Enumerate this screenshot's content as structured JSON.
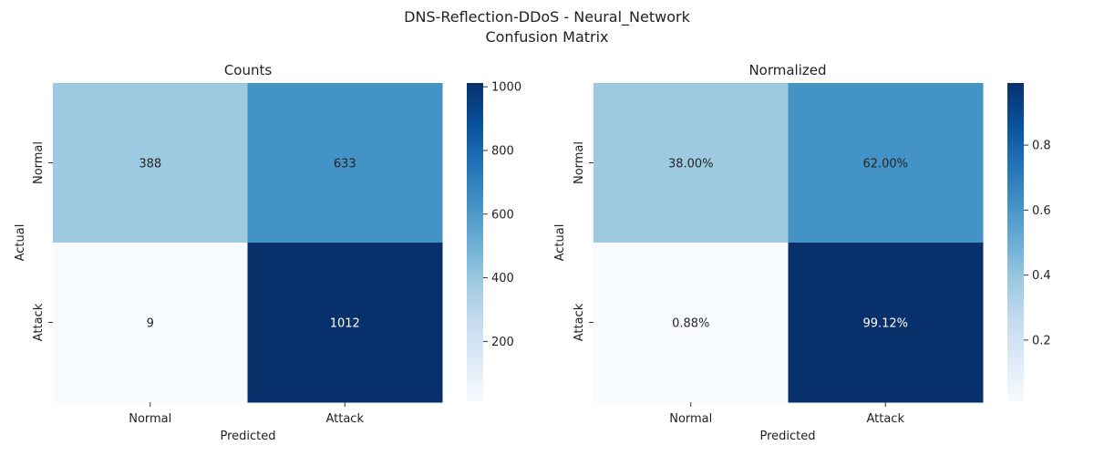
{
  "figure": {
    "title_line1": "DNS-Reflection-DDoS - Neural_Network",
    "title_line2": "Confusion Matrix"
  },
  "chart_data": [
    {
      "type": "heatmap",
      "title": "Counts",
      "xlabel": "Predicted",
      "ylabel": "Actual",
      "x_categories": [
        "Normal",
        "Attack"
      ],
      "y_categories": [
        "Normal",
        "Attack"
      ],
      "values": [
        [
          388,
          633
        ],
        [
          9,
          1012
        ]
      ],
      "cell_labels": [
        [
          "388",
          "633"
        ],
        [
          "9",
          "1012"
        ]
      ],
      "colormap": "Blues",
      "color_range": [
        9,
        1012
      ],
      "colorbar_ticks": [
        200,
        400,
        600,
        800,
        1000
      ],
      "colorbar_tick_labels": [
        "200",
        "400",
        "600",
        "800",
        "1000"
      ]
    },
    {
      "type": "heatmap",
      "title": "Normalized",
      "xlabel": "Predicted",
      "ylabel": "Actual",
      "x_categories": [
        "Normal",
        "Attack"
      ],
      "y_categories": [
        "Normal",
        "Attack"
      ],
      "values": [
        [
          0.38,
          0.62
        ],
        [
          0.0088,
          0.9912
        ]
      ],
      "cell_labels": [
        [
          "38.00%",
          "62.00%"
        ],
        [
          "0.88%",
          "99.12%"
        ]
      ],
      "colormap": "Blues",
      "color_range": [
        0.0088,
        0.9912
      ],
      "colorbar_ticks": [
        0.2,
        0.4,
        0.6,
        0.8
      ],
      "colorbar_tick_labels": [
        "0.2",
        "0.4",
        "0.6",
        "0.8"
      ]
    }
  ]
}
